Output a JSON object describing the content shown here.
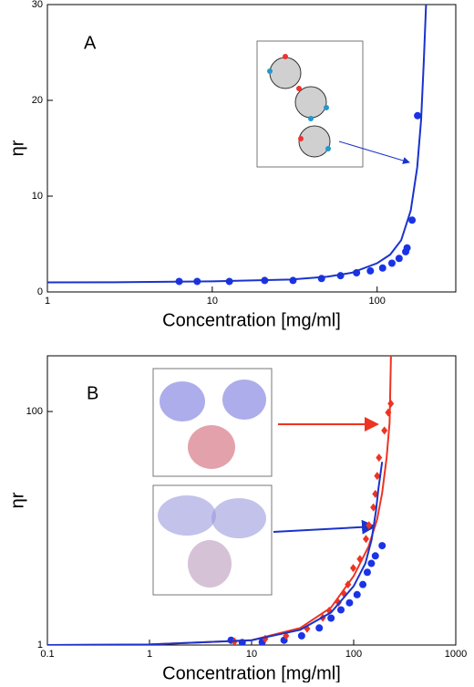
{
  "chart_data": [
    {
      "type": "scatter",
      "panel_label": "A",
      "xlabel": "Concentration [mg/ml]",
      "ylabel": "ηr",
      "xscale": "log",
      "yscale": "linear",
      "xlim": [
        1,
        300
      ],
      "ylim": [
        0,
        30
      ],
      "xticks": [
        1,
        10,
        100
      ],
      "yticks": [
        0,
        10,
        20,
        30
      ],
      "series": [
        {
          "kind": "points",
          "marker": "circle",
          "color": "#1a33e6",
          "x": [
            6.3,
            8.1,
            12.7,
            20.8,
            30.9,
            46,
            60,
            75,
            91,
            108,
            123,
            136,
            149,
            152,
            163,
            176
          ],
          "values": [
            1.1,
            1.1,
            1.1,
            1.2,
            1.2,
            1.4,
            1.7,
            2.0,
            2.2,
            2.5,
            3.0,
            3.5,
            4.2,
            4.6,
            7.5,
            18.4
          ]
        },
        {
          "kind": "line",
          "color": "#1a33cc",
          "x": [
            1,
            3,
            10,
            30,
            50,
            70,
            100,
            120,
            140,
            160,
            175,
            185,
            192,
            198
          ],
          "values": [
            1.0,
            1.02,
            1.1,
            1.3,
            1.6,
            2.0,
            3.0,
            3.9,
            5.4,
            8.5,
            13,
            18,
            24,
            30
          ]
        }
      ]
    },
    {
      "type": "scatter",
      "panel_label": "B",
      "xlabel": "Concentration [mg/ml]",
      "ylabel": "ηr",
      "xscale": "log",
      "yscale": "log",
      "xlim": [
        0.1,
        1000
      ],
      "ylim": [
        1,
        300
      ],
      "xticks": [
        0.1,
        1,
        10,
        100,
        1000
      ],
      "yticks": [
        1,
        100
      ],
      "series": [
        {
          "kind": "points",
          "marker": "circle",
          "color": "#1a33e6",
          "x": [
            6.3,
            8.1,
            12.7,
            20.8,
            30.9,
            46,
            60,
            75,
            91,
            108,
            123,
            136,
            149,
            163,
            190
          ],
          "values": [
            1.1,
            1.05,
            1.06,
            1.1,
            1.2,
            1.4,
            1.7,
            2.0,
            2.3,
            2.7,
            3.3,
            4.2,
            5.0,
            5.8,
            7.1
          ]
        },
        {
          "kind": "points",
          "marker": "diamond",
          "color": "#ee3322",
          "x": [
            6.8,
            13.6,
            21.8,
            35,
            49.8,
            57.6,
            71,
            80,
            88,
            99,
            115,
            132,
            141,
            156,
            163,
            170,
            177,
            200,
            218,
            231
          ],
          "values": [
            1.07,
            1.13,
            1.2,
            1.38,
            1.71,
            1.97,
            2.31,
            2.77,
            3.3,
            4.56,
            5.45,
            8.1,
            10.6,
            15.1,
            19.7,
            28.1,
            40.3,
            68.7,
            98,
            117
          ]
        },
        {
          "kind": "line",
          "color": "#ee3322",
          "x": [
            0.1,
            1,
            10,
            30,
            60,
            100,
            140,
            170,
            190,
            210,
            225,
            232
          ],
          "values": [
            1,
            1.01,
            1.1,
            1.4,
            2.1,
            3.9,
            7,
            12,
            20,
            40,
            80,
            300
          ]
        },
        {
          "kind": "line",
          "color": "#1a33cc",
          "x": [
            0.1,
            1,
            10,
            30,
            60,
            100,
            130,
            150,
            165,
            175,
            190
          ],
          "values": [
            1,
            1.01,
            1.1,
            1.35,
            1.9,
            3.2,
            5,
            8,
            14,
            22,
            37
          ]
        }
      ]
    }
  ]
}
